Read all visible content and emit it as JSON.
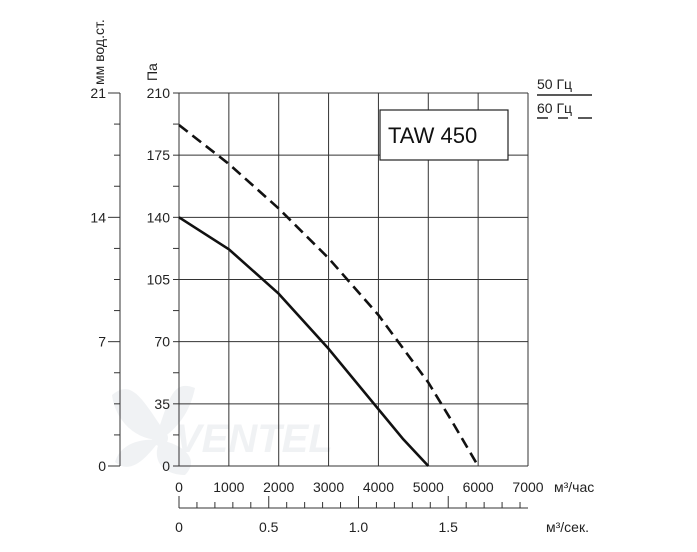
{
  "chart_data": {
    "type": "line",
    "title": "",
    "model_label": "TAW 450",
    "x_unit": "м³/час",
    "x2_unit": "м³/сек.",
    "y_unit_pa": "Па",
    "y_unit_mm": "мм вод.ст.",
    "xlim": [
      0,
      7000
    ],
    "ylim": [
      0,
      210
    ],
    "x_ticks": [
      "0",
      "1000",
      "2000",
      "3000",
      "4000",
      "5000",
      "6000",
      "7000"
    ],
    "y_ticks_pa": [
      "0",
      "35",
      "70",
      "105",
      "140",
      "175",
      "210"
    ],
    "y_ticks_mm": [
      "0",
      "7",
      "14",
      "21"
    ],
    "x2_ticks": [
      "0",
      "0.5",
      "1.0",
      "1.5"
    ],
    "legend": [
      {
        "label": "50 Гц",
        "style": "solid"
      },
      {
        "label": "60 Гц",
        "style": "dashed"
      }
    ],
    "series": [
      {
        "name": "50 Гц",
        "style": "solid",
        "x": [
          0,
          1000,
          2000,
          3000,
          4000,
          4500,
          5000
        ],
        "y": [
          140,
          122,
          97,
          66,
          32,
          15,
          0
        ]
      },
      {
        "name": "60 Гц",
        "style": "dashed",
        "x": [
          0,
          1000,
          2000,
          3000,
          4000,
          5000,
          5500,
          6000
        ],
        "y": [
          192,
          170,
          145,
          117,
          85,
          47,
          24,
          0
        ]
      }
    ],
    "grid": true,
    "watermark": "VENTEL"
  }
}
